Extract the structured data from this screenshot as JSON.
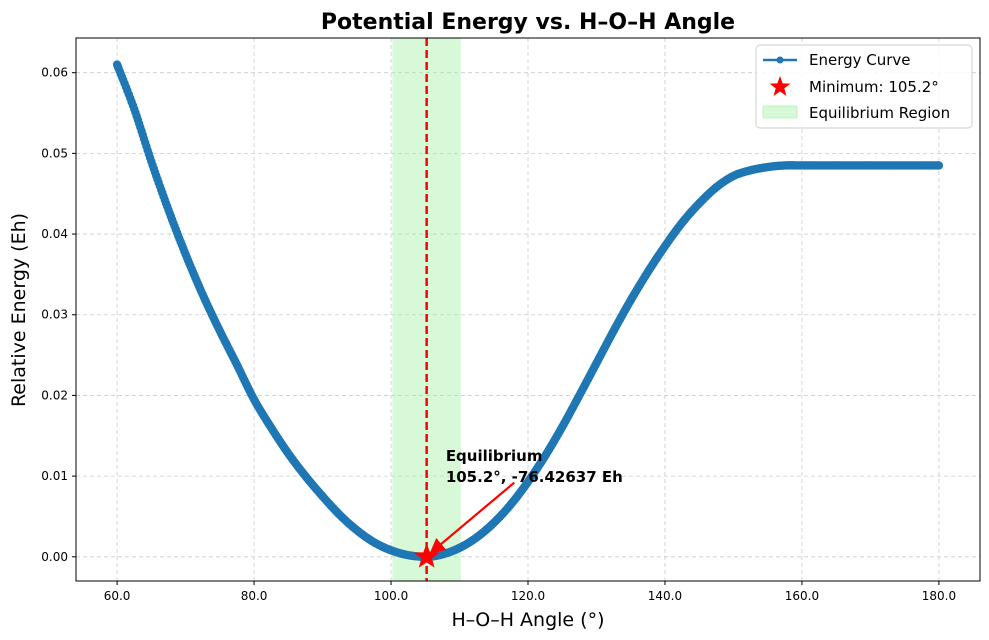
{
  "chart_data": {
    "type": "line",
    "title": "Potential Energy vs. H–O–H Angle",
    "xlabel": "H–O–H Angle (°)",
    "ylabel": "Relative Energy (Eh)",
    "xlim": [
      54,
      186
    ],
    "ylim": [
      -0.003,
      0.0643
    ],
    "xticks": [
      60,
      80,
      100,
      120,
      140,
      160,
      180
    ],
    "xtick_labels": [
      "60.0",
      "80.0",
      "100.0",
      "120.0",
      "140.0",
      "160.0",
      "180.0"
    ],
    "yticks": [
      0.0,
      0.01,
      0.02,
      0.03,
      0.04,
      0.05,
      0.06
    ],
    "ytick_labels": [
      "0.00",
      "0.01",
      "0.02",
      "0.03",
      "0.04",
      "0.05",
      "0.06"
    ],
    "grid": true,
    "legend_position": "top-right",
    "series": [
      {
        "name": "Energy Curve",
        "color": "#1f77b4",
        "marker": "circle",
        "x": [
          60,
          62.5,
          65,
          67.5,
          70,
          72.5,
          75,
          77.5,
          80,
          82.5,
          85,
          87.5,
          90,
          92.5,
          95,
          97.5,
          100,
          102.5,
          105.2,
          107.5,
          110,
          112.5,
          115,
          117.5,
          120,
          122.5,
          125,
          127.5,
          130,
          132.5,
          135,
          137.5,
          140,
          142.5,
          145,
          147.5,
          150,
          152.5,
          155,
          157.5,
          160,
          162.5,
          165,
          167.5,
          170,
          172.5,
          175,
          177.5,
          180
        ],
        "y": [
          0.061,
          0.0555,
          0.049,
          0.043,
          0.0375,
          0.0325,
          0.028,
          0.0238,
          0.0195,
          0.016,
          0.0128,
          0.01,
          0.0075,
          0.0052,
          0.0033,
          0.0018,
          0.0008,
          0.0002,
          0.0,
          0.0003,
          0.0011,
          0.0024,
          0.0042,
          0.0065,
          0.0093,
          0.0125,
          0.0161,
          0.02,
          0.024,
          0.028,
          0.0318,
          0.0353,
          0.0385,
          0.0414,
          0.0438,
          0.0458,
          0.0472,
          0.0479,
          0.0483,
          0.0485,
          0.0485,
          0.0485,
          0.0485,
          0.0485,
          0.0485,
          0.0485,
          0.0485,
          0.0485,
          0.0485
        ]
      },
      {
        "name": "Minimum: 105.2°",
        "color": "#ff0000",
        "marker": "star",
        "x": [
          105.2
        ],
        "y": [
          0.0
        ]
      }
    ],
    "vline": {
      "x": 105.2,
      "color": "#ff0000",
      "style": "dashed"
    },
    "region": {
      "name": "Equilibrium Region",
      "x0": 100.2,
      "x1": 110.2,
      "color": "#90ee90"
    },
    "annotation": {
      "line1": "Equilibrium",
      "line2": "105.2°, -76.42637 Eh",
      "text_x": 108,
      "text_y": 0.0125,
      "arrow_from": [
        118,
        0.0092
      ],
      "arrow_to": [
        105.2,
        0.0
      ]
    }
  }
}
